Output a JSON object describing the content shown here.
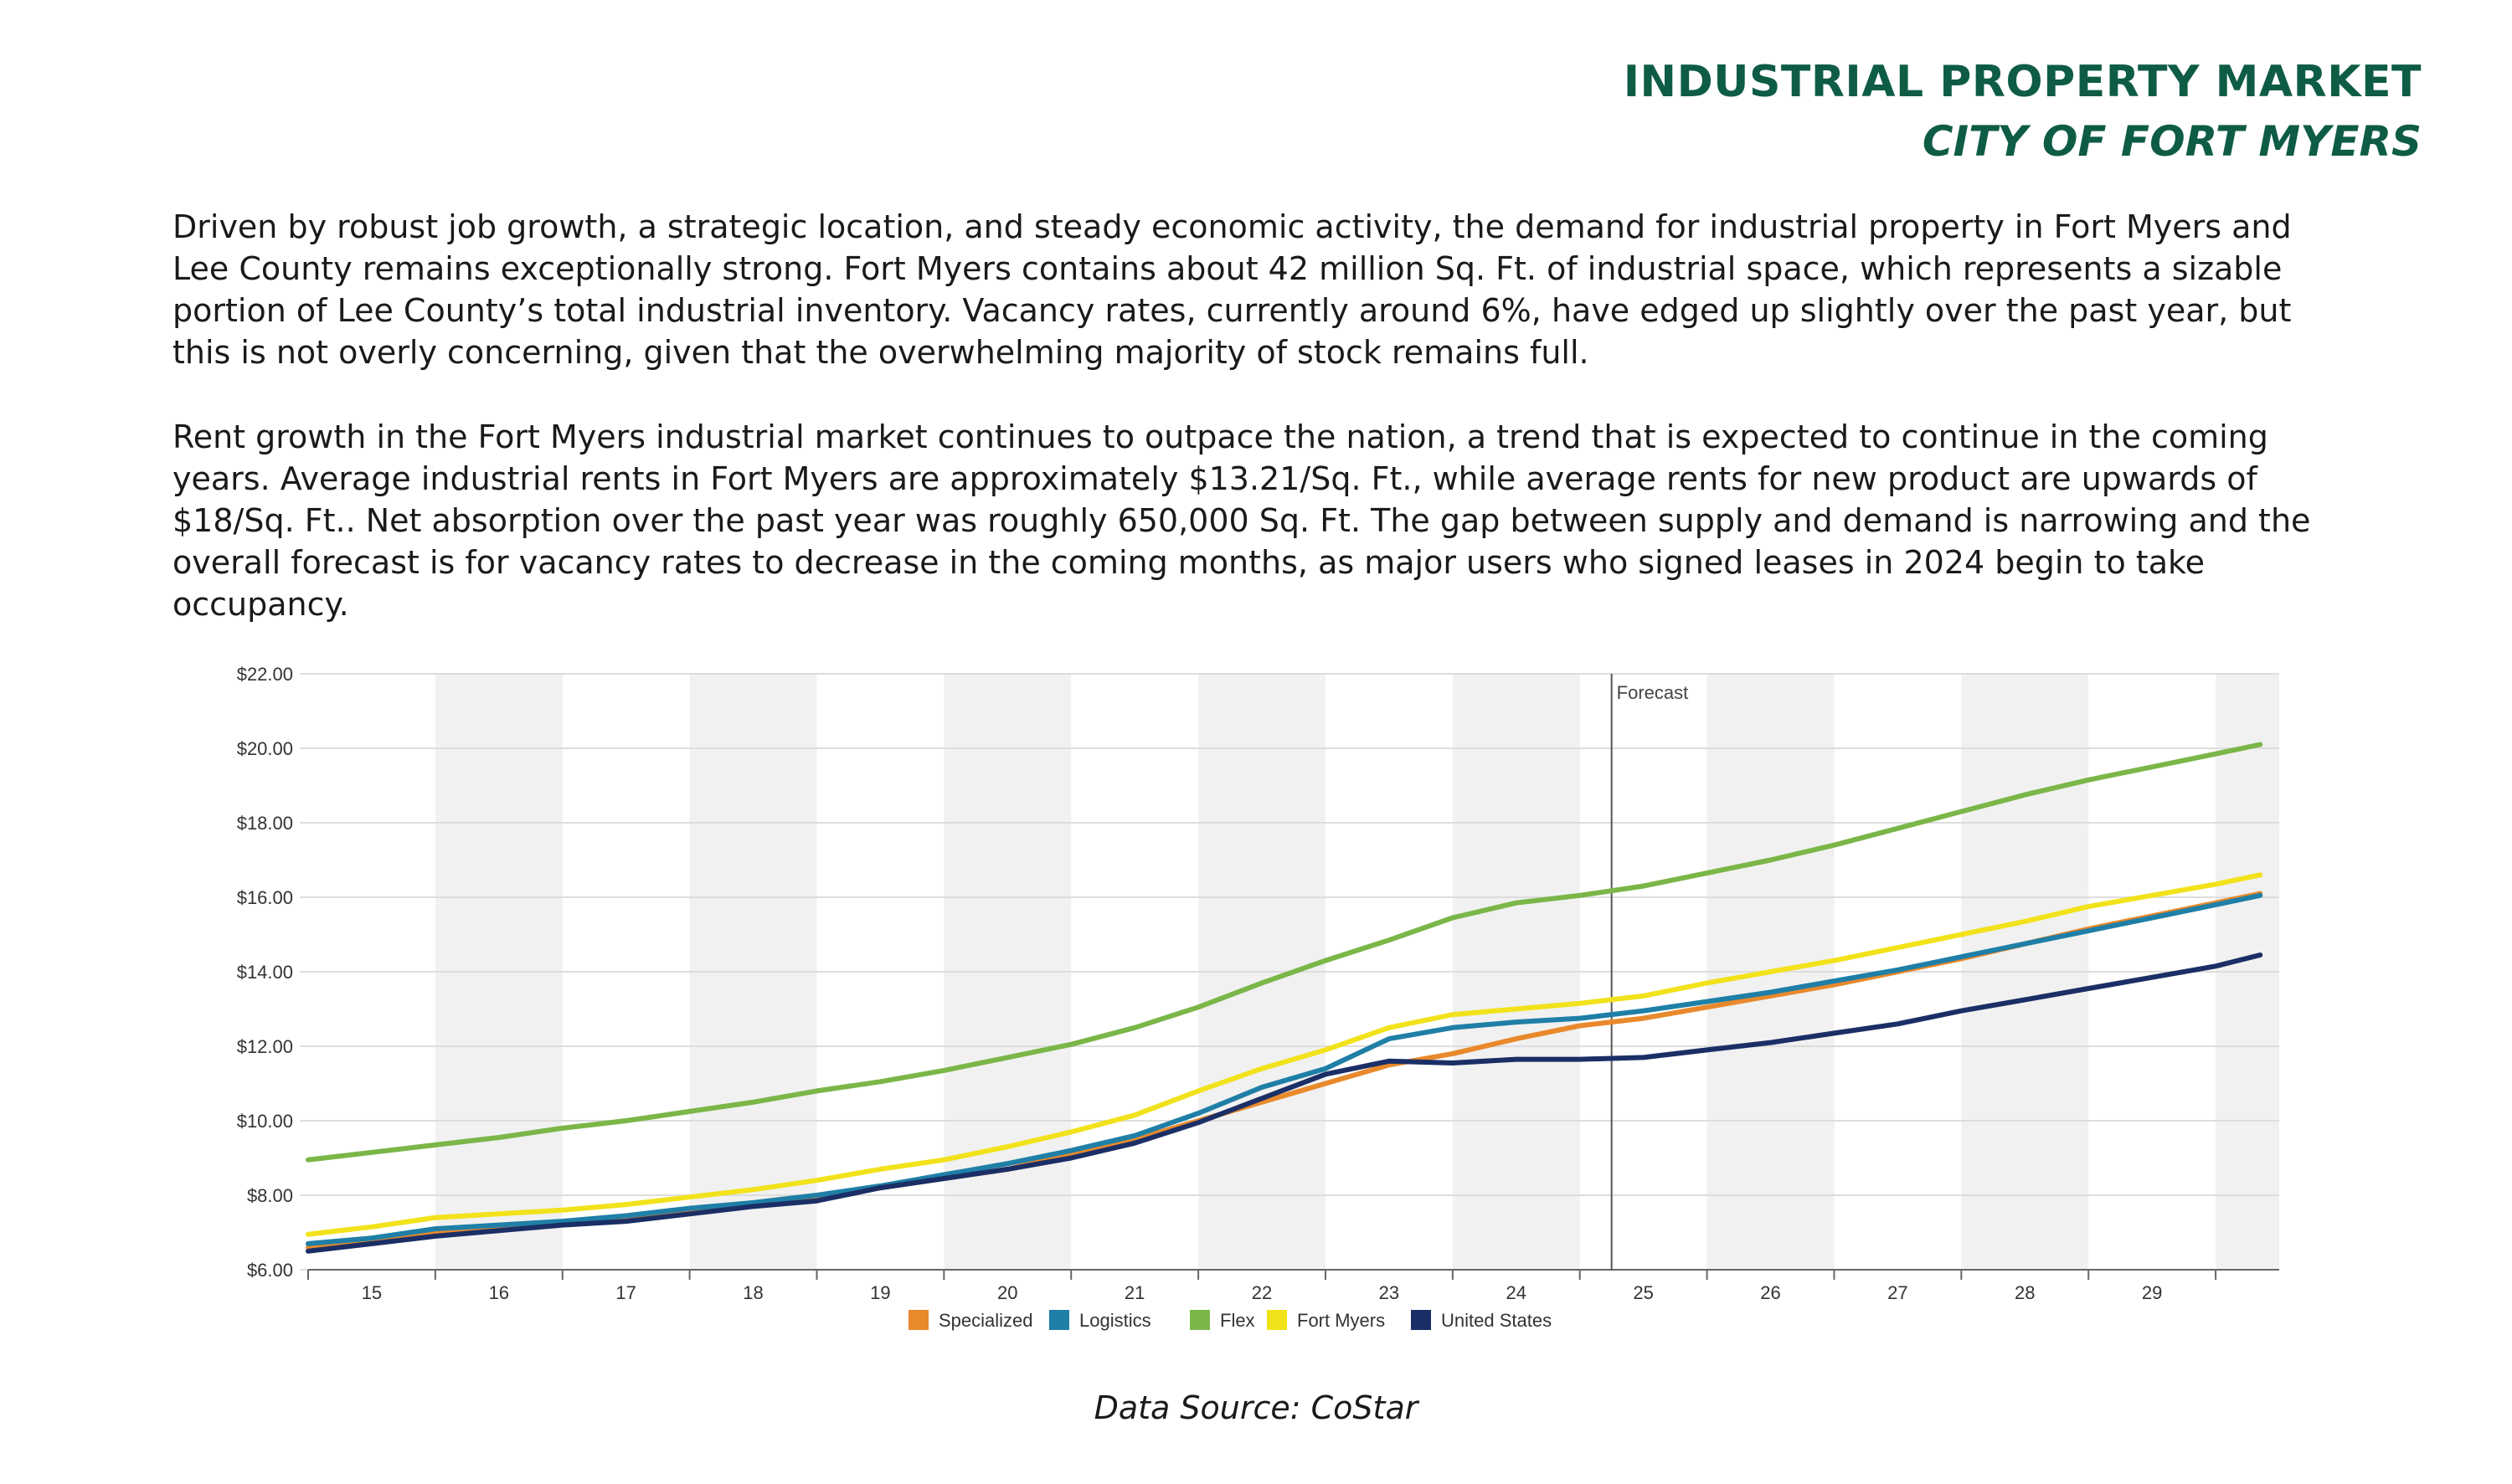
{
  "header": {
    "title": "INDUSTRIAL PROPERTY MARKET",
    "subtitle": "CITY OF FORT MYERS"
  },
  "body": {
    "paragraph1": "Driven by robust job growth, a strategic location, and steady economic activity, the demand for industrial property in Fort Myers and Lee County remains exceptionally strong.  Fort Myers contains about 42 million Sq. Ft. of industrial space, which represents a sizable portion of Lee County’s total industrial inventory. Vacancy rates, currently around 6%, have edged up slightly over the past year, but this is not overly concerning, given that the overwhelming majority of stock remains full.",
    "paragraph2": "Rent growth in the Fort Myers industrial market continues to outpace the nation, a trend that is expected to continue in the coming years. Average industrial rents in Fort Myers are approximately $13.21/Sq. Ft., while average rents for new product are upwards of $18/Sq. Ft..  Net absorption over the past year was roughly 650,000 Sq. Ft.  The gap between supply and demand is narrowing and the overall forecast is for vacancy rates to decrease in the coming months, as major users who signed leases in 2024 begin to take occupancy."
  },
  "chart_data": {
    "type": "line",
    "title": "",
    "xlabel": "",
    "ylabel": "",
    "ylim": [
      6,
      22
    ],
    "xlim": [
      2014.5,
      2030.0
    ],
    "y_ticks": [
      6,
      8,
      10,
      12,
      14,
      16,
      18,
      20,
      22
    ],
    "y_tick_labels": [
      "$6.00",
      "$8.00",
      "$10.00",
      "$12.00",
      "$14.00",
      "$16.00",
      "$18.00",
      "$20.00",
      "$22.00"
    ],
    "categories": [
      "15",
      "16",
      "17",
      "18",
      "19",
      "20",
      "21",
      "22",
      "23",
      "24",
      "25",
      "26",
      "27",
      "28",
      "29"
    ],
    "forecast_start": 2024.75,
    "forecast_label": "Forecast",
    "legend_position": "bottom",
    "series": [
      {
        "name": "Specialized",
        "color": "#e8892b",
        "x": [
          2014.5,
          2015,
          2015.5,
          2016,
          2016.5,
          2017,
          2017.5,
          2018,
          2018.5,
          2019,
          2019.5,
          2020,
          2020.5,
          2021,
          2021.5,
          2022,
          2022.5,
          2023,
          2023.5,
          2024,
          2024.5,
          2025,
          2025.5,
          2026,
          2026.5,
          2027,
          2027.5,
          2028,
          2028.5,
          2029,
          2029.5,
          2029.85
        ],
        "y": [
          6.6,
          6.75,
          7.0,
          7.1,
          7.25,
          7.35,
          7.55,
          7.75,
          7.9,
          8.2,
          8.45,
          8.7,
          9.1,
          9.5,
          10.0,
          10.5,
          11.0,
          11.5,
          11.8,
          12.2,
          12.55,
          12.75,
          13.05,
          13.35,
          13.65,
          14.0,
          14.35,
          14.75,
          15.15,
          15.5,
          15.85,
          16.1
        ]
      },
      {
        "name": "Logistics",
        "color": "#1f7fa6",
        "x": [
          2014.5,
          2015,
          2015.5,
          2016,
          2016.5,
          2017,
          2017.5,
          2018,
          2018.5,
          2019,
          2019.5,
          2020,
          2020.5,
          2021,
          2021.5,
          2022,
          2022.5,
          2023,
          2023.5,
          2024,
          2024.5,
          2025,
          2025.5,
          2026,
          2026.5,
          2027,
          2027.5,
          2028,
          2028.5,
          2029,
          2029.5,
          2029.85
        ],
        "y": [
          6.7,
          6.85,
          7.1,
          7.2,
          7.3,
          7.45,
          7.65,
          7.8,
          8.0,
          8.25,
          8.55,
          8.85,
          9.2,
          9.6,
          10.2,
          10.9,
          11.4,
          12.2,
          12.5,
          12.65,
          12.75,
          12.95,
          13.2,
          13.45,
          13.75,
          14.05,
          14.4,
          14.75,
          15.1,
          15.45,
          15.8,
          16.05
        ]
      },
      {
        "name": "Flex",
        "color": "#7ab648",
        "x": [
          2014.5,
          2015,
          2015.5,
          2016,
          2016.5,
          2017,
          2017.5,
          2018,
          2018.5,
          2019,
          2019.5,
          2020,
          2020.5,
          2021,
          2021.5,
          2022,
          2022.5,
          2023,
          2023.5,
          2024,
          2024.5,
          2025,
          2025.5,
          2026,
          2026.5,
          2027,
          2027.5,
          2028,
          2028.5,
          2029,
          2029.5,
          2029.85
        ],
        "y": [
          8.95,
          9.15,
          9.35,
          9.55,
          9.8,
          10.0,
          10.25,
          10.5,
          10.8,
          11.05,
          11.35,
          11.7,
          12.05,
          12.5,
          13.05,
          13.7,
          14.3,
          14.85,
          15.45,
          15.85,
          16.05,
          16.3,
          16.65,
          17.0,
          17.4,
          17.85,
          18.3,
          18.75,
          19.15,
          19.5,
          19.85,
          20.1
        ]
      },
      {
        "name": "Fort Myers",
        "color": "#f2e21b",
        "x": [
          2014.5,
          2015,
          2015.5,
          2016,
          2016.5,
          2017,
          2017.5,
          2018,
          2018.5,
          2019,
          2019.5,
          2020,
          2020.5,
          2021,
          2021.5,
          2022,
          2022.5,
          2023,
          2023.5,
          2024,
          2024.5,
          2025,
          2025.5,
          2026,
          2026.5,
          2027,
          2027.5,
          2028,
          2028.5,
          2029,
          2029.5,
          2029.85
        ],
        "y": [
          6.95,
          7.15,
          7.4,
          7.5,
          7.6,
          7.75,
          7.95,
          8.15,
          8.4,
          8.7,
          8.95,
          9.3,
          9.7,
          10.15,
          10.8,
          11.4,
          11.9,
          12.5,
          12.85,
          13.0,
          13.15,
          13.35,
          13.7,
          14.0,
          14.3,
          14.65,
          15.0,
          15.35,
          15.75,
          16.05,
          16.35,
          16.6
        ]
      },
      {
        "name": "United States",
        "color": "#1b2f66",
        "x": [
          2014.5,
          2015,
          2015.5,
          2016,
          2016.5,
          2017,
          2017.5,
          2018,
          2018.5,
          2019,
          2019.5,
          2020,
          2020.5,
          2021,
          2021.5,
          2022,
          2022.5,
          2023,
          2023.5,
          2024,
          2024.5,
          2025,
          2025.5,
          2026,
          2026.5,
          2027,
          2027.5,
          2028,
          2028.5,
          2029,
          2029.5,
          2029.85
        ],
        "y": [
          6.5,
          6.7,
          6.9,
          7.05,
          7.2,
          7.3,
          7.5,
          7.7,
          7.85,
          8.2,
          8.45,
          8.7,
          9.0,
          9.4,
          9.95,
          10.6,
          11.25,
          11.6,
          11.55,
          11.65,
          11.65,
          11.7,
          11.9,
          12.1,
          12.35,
          12.6,
          12.95,
          13.25,
          13.55,
          13.85,
          14.15,
          14.45
        ]
      }
    ]
  },
  "footer": {
    "source": "Data Source: CoStar"
  }
}
